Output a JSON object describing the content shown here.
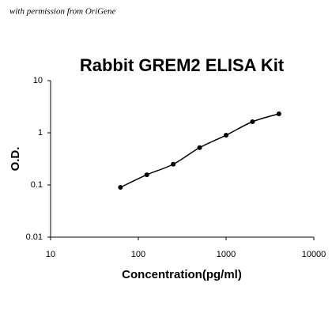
{
  "chart_data": {
    "type": "scatter",
    "annotation": "with permission from OriGene",
    "title": "Rabbit GREM2 ELISA Kit",
    "x_label": "Concentration(pg/ml)",
    "y_label": "O.D.",
    "x": [
      62.5,
      125,
      250,
      500,
      1000,
      2000,
      4000
    ],
    "values": [
      0.09,
      0.157,
      0.25,
      0.52,
      0.9,
      1.63,
      2.31
    ],
    "color": "#000000",
    "xscale": "log",
    "yscale": "log",
    "xlim": [
      10,
      10000
    ],
    "ylim": [
      0.01,
      10
    ],
    "xticks": [
      10,
      100,
      1000,
      10000
    ],
    "yticks": [
      0.01,
      0.1,
      1,
      10
    ],
    "fit_line": true
  }
}
